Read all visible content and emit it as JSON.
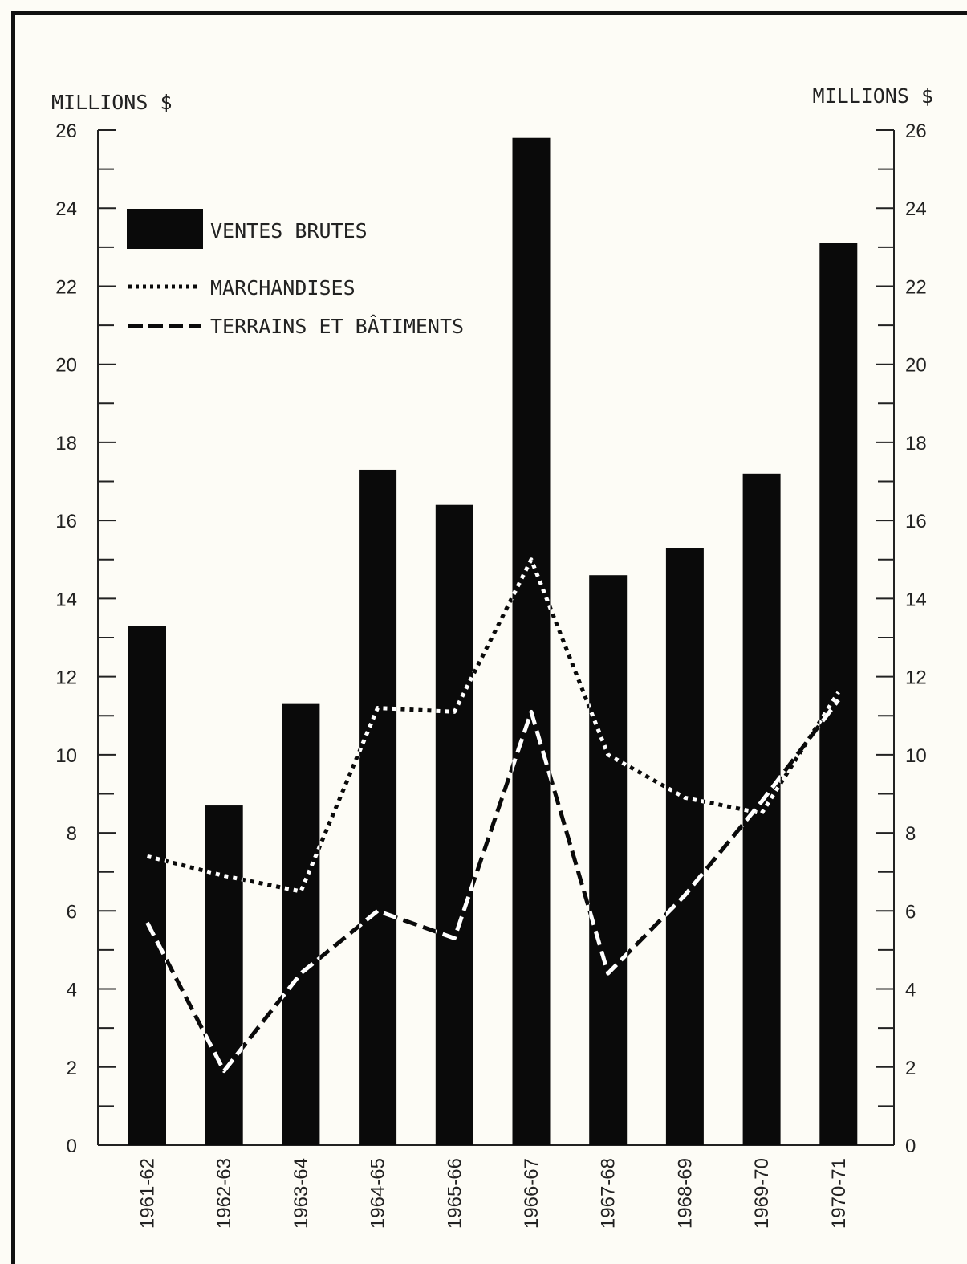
{
  "chart_data": {
    "type": "bar",
    "left_axis_label": "MILLIONS $",
    "right_axis_label": "MILLIONS $",
    "ylim": [
      0,
      26
    ],
    "y_major_ticks": [
      0,
      2,
      4,
      6,
      8,
      10,
      12,
      14,
      16,
      18,
      20,
      22,
      24,
      26
    ],
    "y_tick_labels_left": [
      "0",
      "2",
      "4",
      "6",
      "8",
      "10",
      "12",
      "14",
      "16",
      "18",
      "20",
      "22",
      "24",
      "26"
    ],
    "y_tick_labels_right": [
      "0",
      "2",
      "4",
      "6",
      "8",
      "10",
      "12",
      "14",
      "16",
      "18",
      "20",
      "22",
      "24",
      "26"
    ],
    "categories": [
      "1961-62",
      "1962-63",
      "1963-64",
      "1964-65",
      "1965-66",
      "1966-67",
      "1967-68",
      "1968-69",
      "1969-70",
      "1970-71"
    ],
    "series": [
      {
        "name": "VENTES BRUTES",
        "kind": "bar",
        "color": "#0a0a0a",
        "values": [
          13.3,
          8.7,
          11.3,
          17.3,
          16.4,
          25.8,
          14.6,
          15.3,
          17.2,
          23.1
        ]
      },
      {
        "name": "MARCHANDISES",
        "kind": "dotted-line",
        "color": "#0a0a0a",
        "values": [
          7.4,
          6.9,
          6.5,
          11.2,
          11.1,
          15.0,
          10.0,
          8.9,
          8.5,
          11.6
        ]
      },
      {
        "name": "TERRAINS ET BÂTIMENTS",
        "kind": "dashed-line",
        "color": "#0a0a0a",
        "values": [
          5.7,
          1.9,
          4.4,
          6.0,
          5.3,
          11.1,
          4.4,
          6.4,
          8.8,
          11.4
        ]
      }
    ],
    "legend_position": "top-left"
  }
}
